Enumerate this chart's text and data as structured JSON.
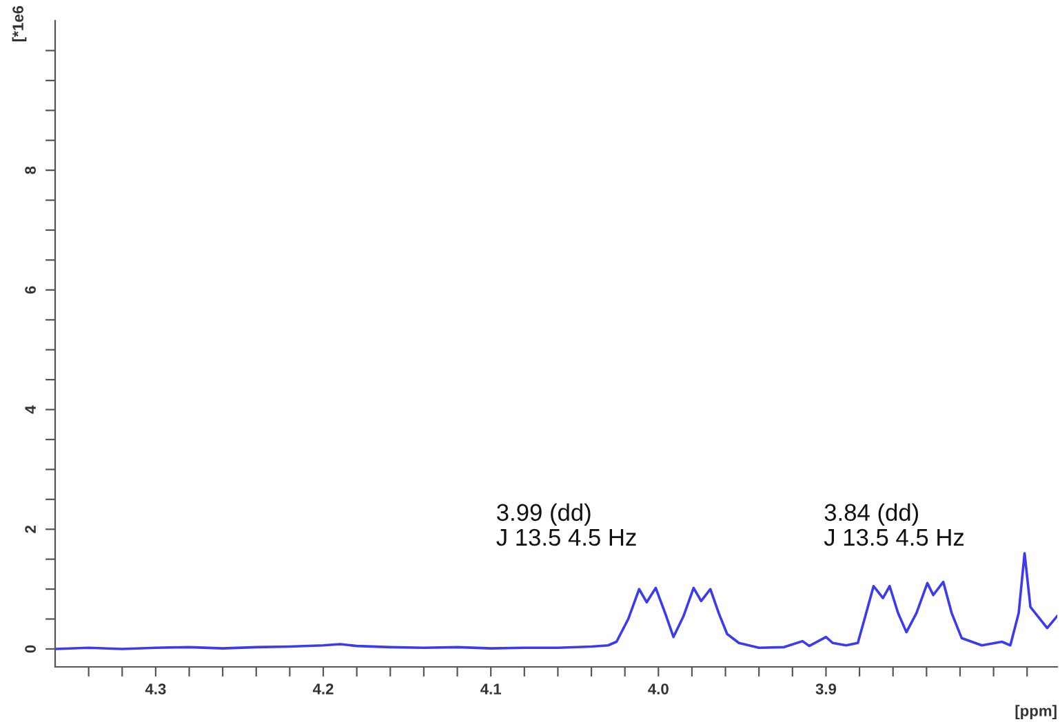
{
  "chart_data": {
    "type": "line",
    "xlabel": "[ppm]",
    "ylabel": "[*1e6",
    "xlim": [
      4.36,
      3.762
    ],
    "ylim": [
      -0.3,
      10.5
    ],
    "xticks": [
      {
        "value": 4.34,
        "label": null
      },
      {
        "value": 4.32,
        "label": null
      },
      4.3,
      {
        "value": 4.28,
        "label": null
      },
      {
        "value": 4.26,
        "label": null
      },
      {
        "value": 4.24,
        "label": null
      },
      {
        "value": 4.22,
        "label": null
      },
      4.2,
      {
        "value": 4.18,
        "label": null
      },
      {
        "value": 4.16,
        "label": null
      },
      {
        "value": 4.14,
        "label": null
      },
      {
        "value": 4.12,
        "label": null
      },
      4.1,
      {
        "value": 4.08,
        "label": null
      },
      {
        "value": 4.06,
        "label": null
      },
      {
        "value": 4.04,
        "label": null
      },
      {
        "value": 4.02,
        "label": null
      },
      {
        "value": 4.0,
        "label": "4.0"
      },
      {
        "value": 3.98,
        "label": null
      },
      {
        "value": 3.96,
        "label": null
      },
      {
        "value": 3.94,
        "label": null
      },
      {
        "value": 3.92,
        "label": null
      },
      3.9,
      {
        "value": 3.88,
        "label": null
      },
      {
        "value": 3.86,
        "label": null
      },
      {
        "value": 3.84,
        "label": null
      },
      {
        "value": 3.82,
        "label": null
      },
      {
        "value": 3.8,
        "label": null
      },
      {
        "value": 3.78,
        "label": null
      }
    ],
    "yticks": [
      0,
      {
        "value": 0.5,
        "label": null
      },
      {
        "value": 1,
        "label": null
      },
      {
        "value": 1.5,
        "label": null
      },
      2,
      {
        "value": 2.5,
        "label": null
      },
      {
        "value": 3,
        "label": null
      },
      {
        "value": 3.5,
        "label": null
      },
      4,
      {
        "value": 4.5,
        "label": null
      },
      {
        "value": 5,
        "label": null
      },
      {
        "value": 5.5,
        "label": null
      },
      6,
      {
        "value": 6.5,
        "label": null
      },
      {
        "value": 7,
        "label": null
      },
      {
        "value": 7.5,
        "label": null
      },
      8,
      {
        "value": 8.5,
        "label": null
      },
      {
        "value": 9,
        "label": null
      },
      {
        "value": 9.5,
        "label": null
      },
      {
        "value": 10,
        "label": null
      }
    ],
    "grid": false,
    "marker": "none",
    "line_style": "solid",
    "series": [
      {
        "color": "#3a3af0",
        "x": [
          4.36,
          4.34,
          4.32,
          4.3,
          4.28,
          4.26,
          4.24,
          4.22,
          4.2,
          4.19,
          4.18,
          4.16,
          4.14,
          4.12,
          4.1,
          4.08,
          4.06,
          4.04,
          4.03,
          4.025,
          4.018,
          4.0115,
          4.007,
          4.0016,
          3.996,
          3.991,
          3.985,
          3.979,
          3.9745,
          3.969,
          3.964,
          3.959,
          3.952,
          3.94,
          3.925,
          3.914,
          3.91,
          3.9,
          3.896,
          3.888,
          3.881,
          3.877,
          3.8716,
          3.866,
          3.862,
          3.857,
          3.852,
          3.846,
          3.8395,
          3.836,
          3.83,
          3.825,
          3.819,
          3.807,
          3.795,
          3.79,
          3.785,
          3.7815,
          3.778,
          3.768,
          3.762
        ],
        "values": [
          0.0,
          0.02,
          0.0,
          0.02,
          0.03,
          0.01,
          0.03,
          0.04,
          0.06,
          0.08,
          0.05,
          0.03,
          0.02,
          0.03,
          0.01,
          0.02,
          0.02,
          0.04,
          0.06,
          0.12,
          0.5,
          1.0,
          0.78,
          1.02,
          0.6,
          0.2,
          0.55,
          1.02,
          0.8,
          1.0,
          0.6,
          0.25,
          0.1,
          0.02,
          0.03,
          0.13,
          0.05,
          0.2,
          0.1,
          0.06,
          0.1,
          0.5,
          1.05,
          0.85,
          1.05,
          0.6,
          0.28,
          0.6,
          1.1,
          0.9,
          1.12,
          0.6,
          0.18,
          0.06,
          0.12,
          0.06,
          0.6,
          1.6,
          0.7,
          0.35,
          0.55
        ]
      }
    ],
    "annotations": [
      "3.99 (dd)\nJ 13.5 4.5 Hz",
      "3.84 (dd)\nJ 13.5 4.5 Hz"
    ]
  }
}
